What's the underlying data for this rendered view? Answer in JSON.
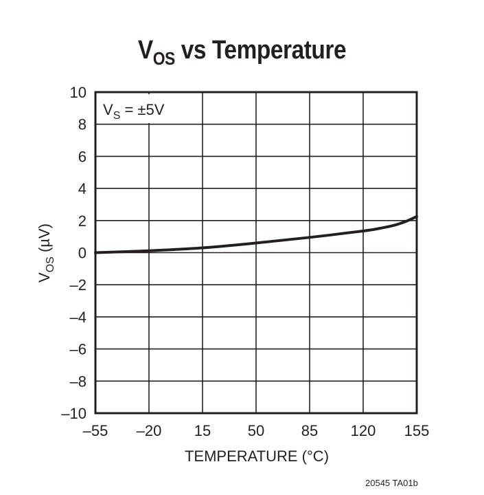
{
  "chart_data": {
    "type": "line",
    "title": "VOS vs Temperature",
    "title_main": "V",
    "title_sub": "OS",
    "title_rest": " vs Temperature",
    "xlabel": "TEMPERATURE (°C)",
    "ylabel": "VOS (µV)",
    "ylabel_main": "V",
    "ylabel_sub": "OS",
    "ylabel_rest": " (µV)",
    "annotation": "VS = ±5V",
    "annotation_main": "V",
    "annotation_sub": "S",
    "annotation_rest": " = ±5V",
    "xlim": [
      -55,
      155
    ],
    "ylim": [
      -10,
      10
    ],
    "x_ticks": [
      "–55",
      "–20",
      "15",
      "50",
      "85",
      "120",
      "155"
    ],
    "y_ticks": [
      "10",
      "8",
      "6",
      "4",
      "2",
      "0",
      "–2",
      "–4",
      "–6",
      "–8",
      "–10"
    ],
    "grid": true,
    "legend": null,
    "series": [
      {
        "name": "VOS",
        "x": [
          -55,
          -20,
          15,
          50,
          85,
          120,
          130,
          140,
          148,
          155
        ],
        "y": [
          0.0,
          0.12,
          0.3,
          0.6,
          0.95,
          1.35,
          1.5,
          1.7,
          1.95,
          2.25
        ]
      }
    ]
  },
  "footnote": "20545 TA01b",
  "colors": {
    "line": "#231f20",
    "grid": "#231f20",
    "background": "#ffffff"
  }
}
